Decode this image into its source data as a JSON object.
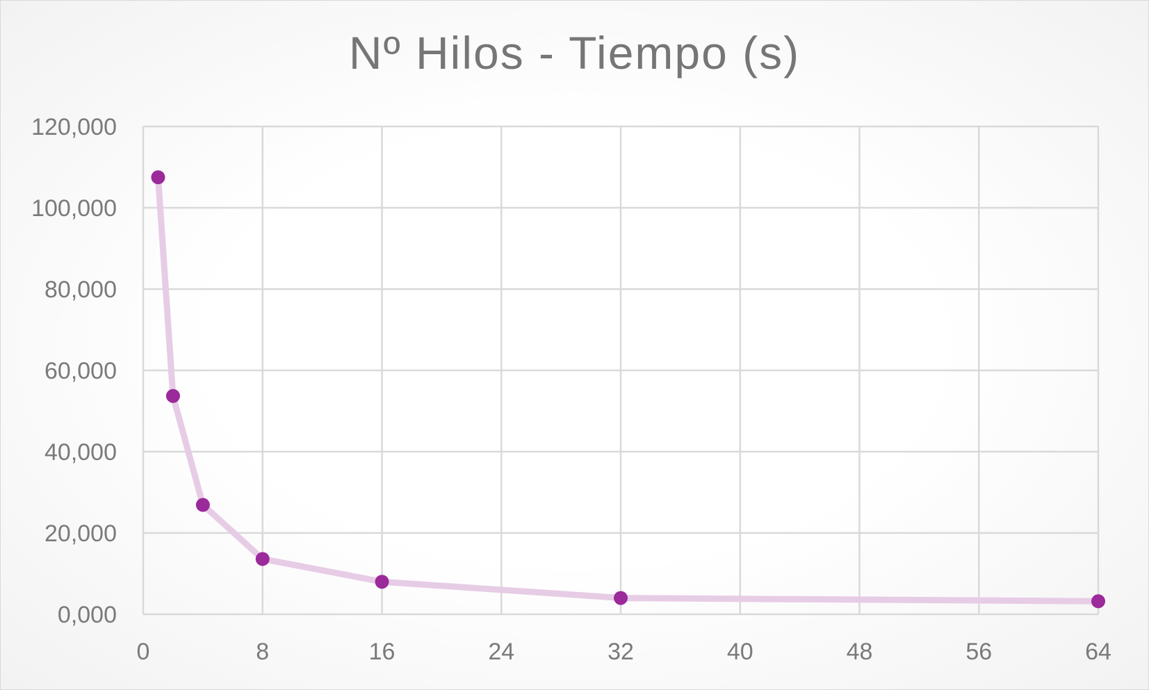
{
  "chart_data": {
    "type": "scatter",
    "title": "Nº Hilos - Tiempo (s)",
    "xlabel": "",
    "ylabel": "",
    "series": [
      {
        "x": [
          1,
          2,
          4,
          8,
          16,
          32,
          64
        ],
        "y": [
          107.5,
          53.7,
          26.9,
          13.6,
          8.0,
          4.0,
          3.2
        ]
      }
    ],
    "xlim": [
      0,
      64
    ],
    "ylim": [
      0,
      120
    ],
    "x_ticks": [
      0,
      8,
      16,
      24,
      32,
      40,
      48,
      56,
      64
    ],
    "y_ticks": [
      0,
      20,
      40,
      60,
      80,
      100,
      120
    ],
    "x_tick_labels": [
      "0",
      "8",
      "16",
      "24",
      "32",
      "40",
      "48",
      "56",
      "64"
    ],
    "y_tick_labels": [
      "0,000",
      "20,000",
      "40,000",
      "60,000",
      "80,000",
      "100,000",
      "120,000"
    ],
    "grid": true,
    "legend": "none",
    "colors": {
      "marker": "#9B2A9B",
      "line": "#E7CCE6",
      "grid": "#d9d9d9",
      "text": "#767676"
    }
  }
}
